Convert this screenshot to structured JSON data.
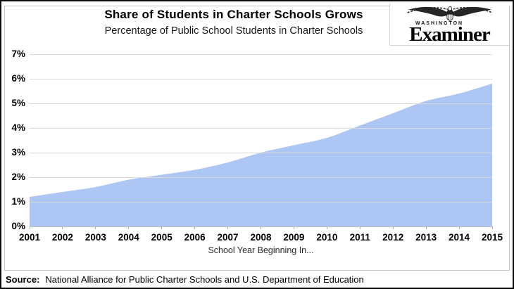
{
  "page": {
    "title": "Share of Students in Charter Schools Grows",
    "subtitle": "Percentage of Public School Students in Charter Schools",
    "source_label": "Source:",
    "source_text": "National Alliance for Public Charter Schools and U.S. Department of Education"
  },
  "logo": {
    "masthead_city": "WASHINGTON",
    "masthead_name": "Examiner"
  },
  "chart_data": {
    "type": "area",
    "title": "Share of Students in Charter Schools Grows",
    "subtitle": "Percentage of Public School Students in Charter Schools",
    "xlabel": "School Year Beginning In...",
    "ylabel": "",
    "categories": [
      "2001",
      "2002",
      "2003",
      "2004",
      "2005",
      "2006",
      "2007",
      "2008",
      "2009",
      "2010",
      "2011",
      "2012",
      "2013",
      "2014",
      "2015"
    ],
    "values": [
      1.2,
      1.4,
      1.6,
      1.9,
      2.1,
      2.3,
      2.6,
      3.0,
      3.3,
      3.6,
      4.1,
      4.6,
      5.1,
      5.4,
      5.8
    ],
    "y_ticks": [
      "0%",
      "1%",
      "2%",
      "3%",
      "4%",
      "5%",
      "6%",
      "7%"
    ],
    "ylim": [
      0,
      7
    ],
    "grid": true,
    "legend": "none",
    "area_color": "#aec6f3",
    "gridline_color": "#d9d9d9",
    "axis_color": "#bfbfbf",
    "tick_color": "#b3b3b3"
  }
}
